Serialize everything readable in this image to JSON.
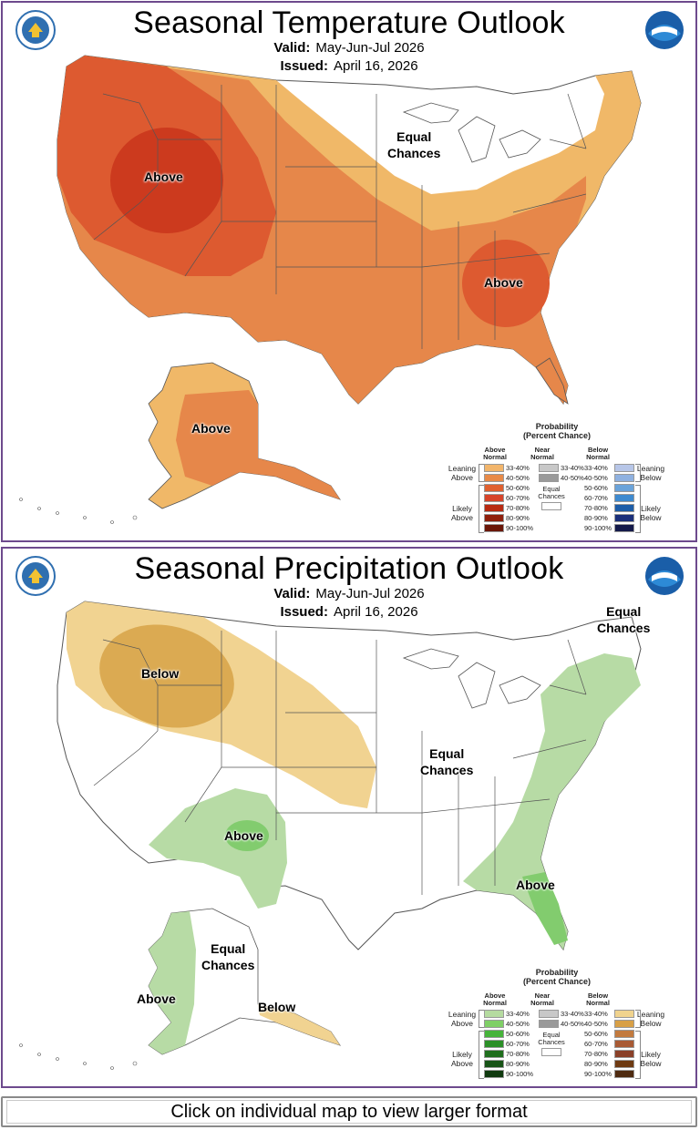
{
  "temperature": {
    "title": "Seasonal Temperature Outlook",
    "valid_label": "Valid:",
    "valid_value": "May-Jun-Jul 2026",
    "issued_label": "Issued:",
    "issued_value": "April 16, 2026",
    "labels": {
      "above_west": "Above",
      "equal_chances": [
        "Equal",
        "Chances"
      ],
      "above_southeast": "Above",
      "above_alaska": "Above"
    },
    "legend": {
      "title": [
        "Probability",
        "(Percent Chance)"
      ],
      "above_head": [
        "Above",
        "Normal"
      ],
      "near_head": [
        "Near",
        "Normal"
      ],
      "below_head": [
        "Below",
        "Normal"
      ],
      "leaning_above": [
        "Leaning",
        "Above"
      ],
      "likely_above": [
        "Likely",
        "Above"
      ],
      "leaning_below": [
        "Leaning",
        "Below"
      ],
      "likely_below": [
        "Likely",
        "Below"
      ],
      "equal_chances": [
        "Equal",
        "Chances"
      ],
      "ranges": [
        "33-40%",
        "40-50%",
        "50-60%",
        "60-70%",
        "70-80%",
        "80-90%",
        "90-100%"
      ],
      "near_ranges": [
        "33-40%",
        "40-50%"
      ],
      "above_colors": [
        "#f2b56b",
        "#e88a48",
        "#e0602f",
        "#d7442a",
        "#b82a12",
        "#8f1f0c",
        "#6a1608"
      ],
      "near_colors": [
        "#c8c8c8",
        "#9a9a9a"
      ],
      "below_colors": [
        "#b7c6e8",
        "#8fb1e0",
        "#6aa3da",
        "#3e8ad0",
        "#1d5da8",
        "#1a2f7a",
        "#141a4a"
      ]
    },
    "map_colors": {
      "cat_33_40": "#f0b868",
      "cat_40_50": "#e6874a",
      "cat_50_60": "#dd5a30",
      "cat_60_70": "#cc3a1e",
      "land": "#ffffff",
      "border": "#555555"
    }
  },
  "precipitation": {
    "title": "Seasonal Precipitation Outlook",
    "valid_label": "Valid:",
    "valid_value": "May-Jun-Jul 2026",
    "issued_label": "Issued:",
    "issued_value": "April 16, 2026",
    "labels": {
      "below_northwest": "Below",
      "equal_chances_center": [
        "Equal",
        "Chances"
      ],
      "equal_chances_northeast": [
        "Equal",
        "Chances"
      ],
      "above_southwest": "Above",
      "above_southeast": "Above",
      "equal_chances_alaska": [
        "Equal",
        "Chances"
      ],
      "above_alaska": "Above",
      "below_alaska": "Below"
    },
    "legend": {
      "title": [
        "Probability",
        "(Percent Chance)"
      ],
      "above_head": [
        "Above",
        "Normal"
      ],
      "near_head": [
        "Near",
        "Normal"
      ],
      "below_head": [
        "Below",
        "Normal"
      ],
      "leaning_above": [
        "Leaning",
        "Above"
      ],
      "likely_above": [
        "Likely",
        "Above"
      ],
      "leaning_below": [
        "Leaning",
        "Below"
      ],
      "likely_below": [
        "Likely",
        "Below"
      ],
      "equal_chances": [
        "Equal",
        "Chances"
      ],
      "ranges": [
        "33-40%",
        "40-50%",
        "50-60%",
        "60-70%",
        "70-80%",
        "80-90%",
        "90-100%"
      ],
      "near_ranges": [
        "33-40%",
        "40-50%"
      ],
      "above_colors": [
        "#b5dba0",
        "#7fcf66",
        "#46b33a",
        "#2b8f27",
        "#1f6e1d",
        "#175316",
        "#103a0f"
      ],
      "near_colors": [
        "#c8c8c8",
        "#9a9a9a"
      ],
      "below_colors": [
        "#f0d38e",
        "#d8a046",
        "#c27a3e",
        "#a85a34",
        "#8a4028",
        "#6e3a12",
        "#4e2a10"
      ]
    },
    "map_colors": {
      "above_33_40": "#b7dba5",
      "above_40_50": "#82cc6e",
      "below_33_40": "#f1d391",
      "below_40_50": "#dbaa52",
      "land": "#ffffff",
      "border": "#555555"
    }
  },
  "footer": {
    "text": "Click on individual map to view larger format"
  }
}
